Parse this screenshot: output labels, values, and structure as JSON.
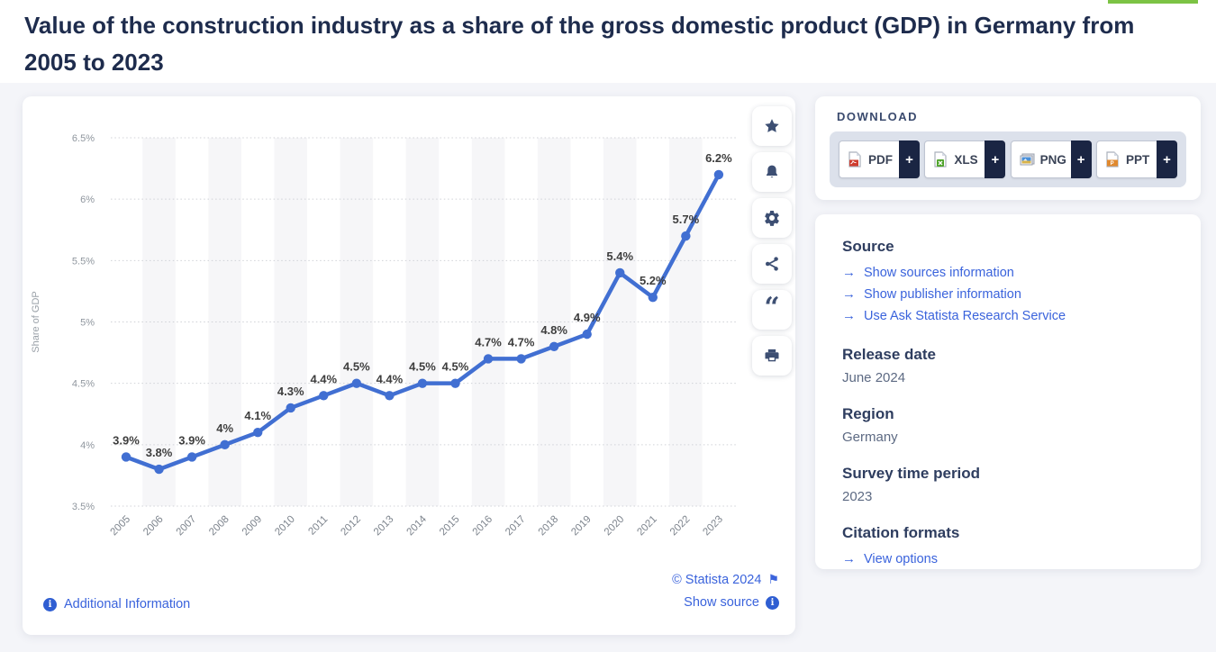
{
  "page": {
    "title": "Value of the construction industry as a share of the gross domestic product (GDP) in Germany from 2005 to 2023"
  },
  "colors": {
    "line_blue": "#416fd2",
    "link_blue": "#3a63dc",
    "navy": "#1e2c4d",
    "icon_navy": "#3d4f73",
    "page_bg": "#f4f5f9",
    "band_gray": "#f6f6f8",
    "green_bar": "#7cc344",
    "plus_tab_navy": "#1a2543",
    "download_box": "#dce1eb"
  },
  "icons": {
    "arrow_right": "→",
    "flag": "⚑",
    "info_i": "i",
    "plus": "+",
    "quote": "“"
  },
  "chart_data": {
    "type": "line",
    "title": "Value of the construction industry as a share of the gross domestic product (GDP) in Germany from 2005 to 2023",
    "ylabel": "Share of GDP",
    "xlabel": "",
    "categories": [
      "2005",
      "2006",
      "2007",
      "2008",
      "2009",
      "2010",
      "2011",
      "2012",
      "2013",
      "2014",
      "2015",
      "2016",
      "2017",
      "2018",
      "2019",
      "2020",
      "2021",
      "2022",
      "2023"
    ],
    "values": [
      3.9,
      3.8,
      3.9,
      4.0,
      4.1,
      4.3,
      4.4,
      4.5,
      4.4,
      4.5,
      4.5,
      4.7,
      4.7,
      4.8,
      4.9,
      5.4,
      5.2,
      5.7,
      6.2
    ],
    "point_labels": [
      "3.9%",
      "3.8%",
      "3.9%",
      "4%",
      "4.1%",
      "4.3%",
      "4.4%",
      "4.5%",
      "4.4%",
      "4.5%",
      "4.5%",
      "4.7%",
      "4.7%",
      "4.8%",
      "4.9%",
      "5.4%",
      "5.2%",
      "5.7%",
      "6.2%"
    ],
    "ylim": [
      3.5,
      6.5
    ],
    "ytick_values": [
      3.5,
      4,
      4.5,
      5,
      5.5,
      6,
      6.5
    ],
    "ytick_labels": [
      "3.5%",
      "4%",
      "4.5%",
      "5%",
      "5.5%",
      "6%",
      "6.5%"
    ],
    "grid": "dotted-horizontal",
    "alternating_vertical_bands": "odd-index categories shaded",
    "legend": "none",
    "line_color": "#416fd2"
  },
  "toolbar": {
    "buttons": [
      {
        "name": "favorite",
        "icon": "star-icon"
      },
      {
        "name": "notifications",
        "icon": "bell-icon"
      },
      {
        "name": "settings",
        "icon": "gear-icon"
      },
      {
        "name": "share",
        "icon": "share-icon"
      },
      {
        "name": "cite",
        "icon": "quote-icon"
      },
      {
        "name": "print",
        "icon": "printer-icon"
      }
    ]
  },
  "chart_footer": {
    "additional_info": "Additional Information",
    "copyright": "© Statista 2024",
    "show_source": "Show source"
  },
  "download": {
    "heading": "DOWNLOAD",
    "formats": [
      {
        "label": "PDF"
      },
      {
        "label": "XLS"
      },
      {
        "label": "PNG"
      },
      {
        "label": "PPT"
      }
    ]
  },
  "details": {
    "source": {
      "heading": "Source",
      "links": [
        "Show sources information",
        "Show publisher information",
        "Use Ask Statista Research Service"
      ]
    },
    "release_date": {
      "heading": "Release date",
      "value": "June 2024"
    },
    "region": {
      "heading": "Region",
      "value": "Germany"
    },
    "survey_period": {
      "heading": "Survey time period",
      "value": "2023"
    },
    "citation": {
      "heading": "Citation formats",
      "link": "View options"
    }
  }
}
